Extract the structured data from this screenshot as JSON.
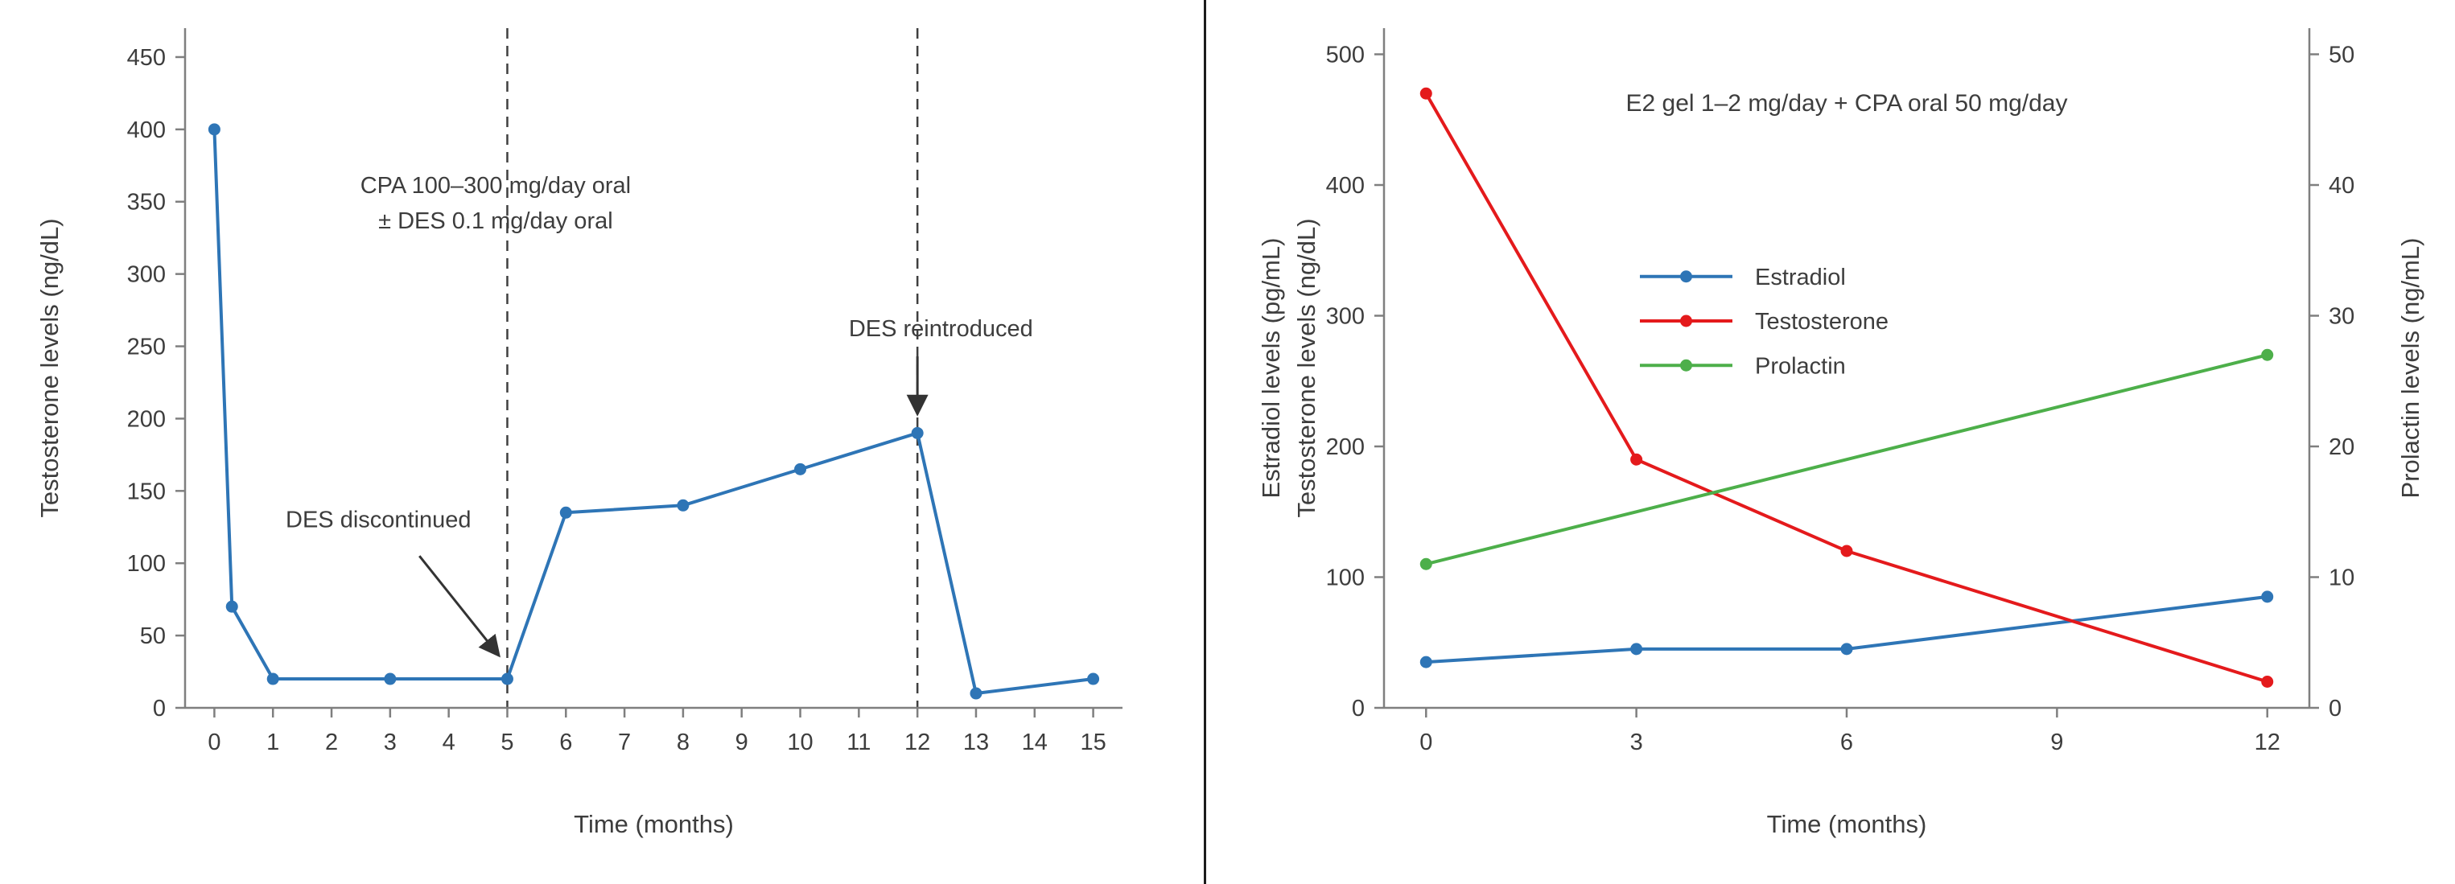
{
  "figure": {
    "background": "#ffffff",
    "divider_color": "#1c1c1c"
  },
  "style": {
    "spine_color": "#7f7f7f",
    "tick_label_color": "#3d3d3d",
    "vline_color": "#3f3f3f",
    "annotation_color": "#333333",
    "series_blue": "#2e75b6",
    "series_red": "#e41a1c",
    "series_green": "#4daf4a"
  },
  "chart_data": [
    {
      "type": "line",
      "title": "",
      "xlabel": "Time (months)",
      "ylabel": [
        "Testosterone levels (ng/dL)"
      ],
      "xlim": [
        -0.5,
        15.5
      ],
      "ylim": [
        0,
        470
      ],
      "xticks": [
        0,
        1,
        2,
        3,
        4,
        5,
        6,
        7,
        8,
        9,
        10,
        11,
        12,
        13,
        14,
        15
      ],
      "yticks": [
        0,
        50,
        100,
        150,
        200,
        250,
        300,
        350,
        400,
        450
      ],
      "grid": false,
      "series": [
        {
          "name": "Testosterone",
          "color": "#2e75b6",
          "axis": "y",
          "x": [
            0,
            0.3,
            1,
            3,
            5,
            6,
            8,
            10,
            12,
            13,
            15
          ],
          "y": [
            400,
            70,
            20,
            20,
            20,
            135,
            140,
            165,
            190,
            10,
            20
          ]
        }
      ],
      "vlines": [
        {
          "x": 5
        },
        {
          "x": 12
        }
      ],
      "annotations": [
        {
          "kind": "text",
          "lines": [
            "CPA 100–300 mg/day oral",
            "± DES 0.1 mg/day oral"
          ],
          "x": 4.8,
          "y": 356,
          "align": "middle"
        },
        {
          "kind": "text",
          "lines": [
            "DES discontinued"
          ],
          "x": 2.8,
          "y": 125,
          "align": "middle"
        },
        {
          "kind": "arrow",
          "x1": 3.5,
          "y1": 105,
          "x2": 4.86,
          "y2": 36
        },
        {
          "kind": "text",
          "lines": [
            "DES reintroduced"
          ],
          "x": 12.4,
          "y": 257,
          "align": "middle"
        },
        {
          "kind": "arrow",
          "x1": 12,
          "y1": 243,
          "x2": 12,
          "y2": 203
        }
      ]
    },
    {
      "type": "line",
      "title": "E2 gel 1–2 mg/day + CPA oral 50 mg/day",
      "xlabel": "Time (months)",
      "ylabel": [
        "Estradiol levels (pg/mL)",
        "Testosterone levels (ng/dL)"
      ],
      "y2label": "Prolactin levels (ng/mL)",
      "xlim": [
        -0.6,
        12.6
      ],
      "ylim": [
        0,
        520
      ],
      "y2lim": [
        0,
        52
      ],
      "xticks": [
        0,
        3,
        6,
        9,
        12
      ],
      "yticks": [
        0,
        100,
        200,
        300,
        400,
        500
      ],
      "y2ticks": [
        0,
        10,
        20,
        30,
        40,
        50
      ],
      "grid": false,
      "legend": {
        "x": 3.05,
        "y": 330,
        "row_dy": 34,
        "position": "upper-center-inside"
      },
      "series": [
        {
          "name": "Estradiol",
          "color": "#2e75b6",
          "axis": "y",
          "x": [
            0,
            3,
            6,
            12
          ],
          "y": [
            35,
            45,
            45,
            85
          ]
        },
        {
          "name": "Testosterone",
          "color": "#e41a1c",
          "axis": "y",
          "x": [
            0,
            3,
            6,
            12
          ],
          "y": [
            470,
            190,
            120,
            20
          ]
        },
        {
          "name": "Prolactin",
          "color": "#4daf4a",
          "axis": "y2",
          "x": [
            0,
            12
          ],
          "y": [
            11,
            27
          ]
        }
      ],
      "vlines": [],
      "annotations": []
    }
  ]
}
